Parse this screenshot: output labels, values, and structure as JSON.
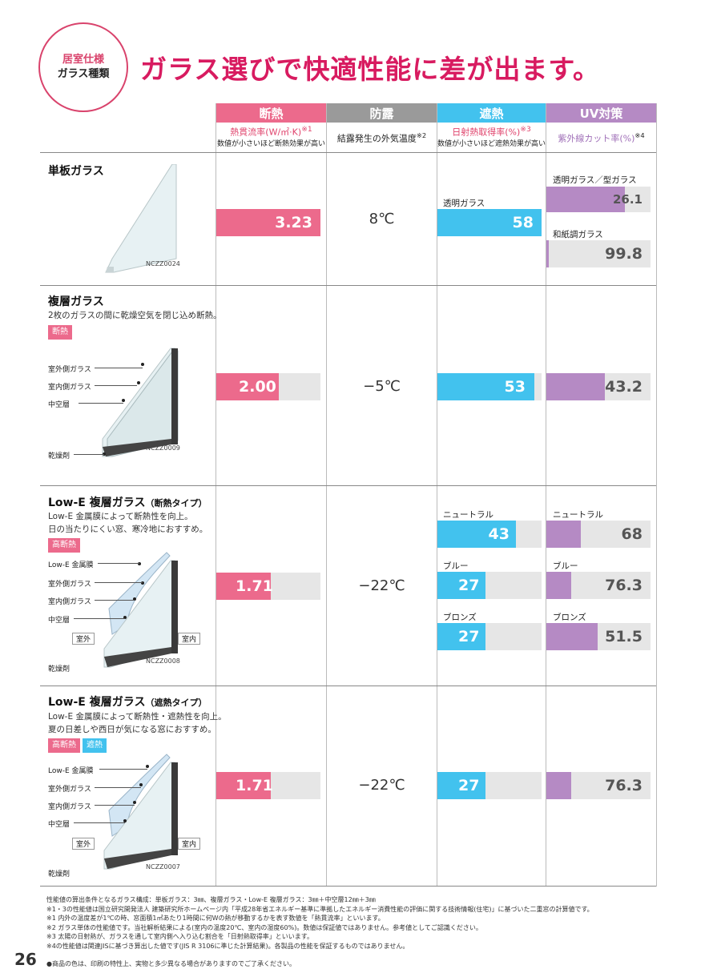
{
  "badge": {
    "line1": "居室仕様",
    "line2": "ガラス種類"
  },
  "headline": "ガラス選びで快適性能に差が出ます。",
  "columns": {
    "heat": {
      "title": "断熱",
      "metric": "熱貫流率(W/㎡·K)",
      "mark": "※1",
      "note": "数値が小さいほど断熱効果が高い",
      "color": "#ec6a8c"
    },
    "dew": {
      "title": "防露",
      "metric": "結露発生の外気温度",
      "mark": "※2",
      "color": "#9a9a9a"
    },
    "shade": {
      "title": "遮熱",
      "metric": "日射熱取得率(%)",
      "mark": "※3",
      "note": "数値が小さいほど遮熱効果が高い",
      "color": "#42c2ee"
    },
    "uv": {
      "title": "UV対策",
      "metric": "紫外線カット率(%)",
      "mark": "※4",
      "color": "#b58ac4"
    }
  },
  "rows": {
    "single": {
      "title": "単板ガラス",
      "code": "NCZZ0024",
      "heat": "3.23",
      "heat_pct": 1.0,
      "dew": "8℃",
      "shade_label": "透明ガラス",
      "shade": "58",
      "shade_pct": 1.0,
      "uv1_label": "透明ガラス／型ガラス",
      "uv1": "26.1",
      "uv1_pct": 0.75,
      "uv2_label": "和紙調ガラス",
      "uv2": "99.8",
      "uv2_pct": 0.02
    },
    "double": {
      "title": "複層ガラス",
      "desc": "2枚のガラスの間に乾燥空気を閉じ込め断熱。",
      "tag": "断熱",
      "code": "NCZZ0009",
      "labels": [
        "室外側ガラス",
        "室内側ガラス",
        "中空層",
        "乾燥剤"
      ],
      "heat": "2.00",
      "heat_pct": 0.6,
      "dew": "−5℃",
      "shade": "53",
      "shade_pct": 0.93,
      "uv": "43.2",
      "uv_pct": 0.56
    },
    "lowe1": {
      "title": "Low-E 複層ガラス",
      "subtitle": "（断熱タイプ）",
      "desc1": "Low-E 金属膜によって断熱性を向上。",
      "desc2": "日の当たりにくい窓、寒冷地におすすめ。",
      "tag": "高断熱",
      "code": "NCZZ0008",
      "labels": [
        "Low-E 金属膜",
        "室外側ガラス",
        "室内側ガラス",
        "中空層",
        "乾燥剤"
      ],
      "outside": "室外",
      "inside": "室内",
      "heat": "1.71",
      "heat_pct": 0.52,
      "dew": "−22℃",
      "n_label": "ニュートラル",
      "n_shade": "43",
      "n_shade_pct": 0.75,
      "n_uv": "68",
      "n_uv_pct": 0.33,
      "b_label": "ブルー",
      "b_shade": "27",
      "b_shade_pct": 0.46,
      "b_uv": "76.3",
      "b_uv_pct": 0.24,
      "z_label": "ブロンズ",
      "z_shade": "27",
      "z_shade_pct": 0.46,
      "z_uv": "51.5",
      "z_uv_pct": 0.49
    },
    "lowe2": {
      "title": "Low-E 複層ガラス",
      "subtitle": "（遮熱タイプ）",
      "desc1": "Low-E 金属膜によって断熱性・遮熱性を向上。",
      "desc2": "夏の日差しや西日が気になる窓におすすめ。",
      "tag1": "高断熱",
      "tag2": "遮熱",
      "code": "NCZZ0007",
      "labels": [
        "Low-E 金属膜",
        "室外側ガラス",
        "室内側ガラス",
        "中空層",
        "乾燥剤"
      ],
      "outside": "室外",
      "inside": "室内",
      "heat": "1.71",
      "heat_pct": 0.52,
      "dew": "−22℃",
      "shade": "27",
      "shade_pct": 0.46,
      "uv": "76.3",
      "uv_pct": 0.24
    }
  },
  "notes": [
    "性能値の算出条件となるガラス構成：単板ガラス：3㎜、複層ガラス・Low-E 複層ガラス：3㎜＋中空層12㎜＋3㎜",
    "※1・3の性能値は国立研究開発法人 建築研究所ホームページ内「平成28年省エネルギー基準に準拠したエネルギー消費性能の評価に関する技術情報(住宅)」に基づいた二重窓の計算値です。",
    "※1 内外の温度差が1℃の時、窓面積1㎡あたり1時間に何Wの熱が移動するかを表す数値を「熱貫流率」といいます。",
    "※2 ガラス単体の性能値です。当社解析結果による(室内の温度20℃、室内の湿度60%)。数値は保証値ではありません。参考値としてご認識ください。",
    "※3 太陽の日射熱が、ガラスを通して室内側へ入り込む割合を「日射熱取得率」といいます。",
    "※4の性能値は関連JISに基づき算出した値です(JIS R 3106に準じた計算結果)。各製品の性能を保証するものではありません。"
  ],
  "page_number": "26",
  "footer": "●商品の色は、印刷の特性上、実物と多少異なる場合がありますのでご了承ください。"
}
